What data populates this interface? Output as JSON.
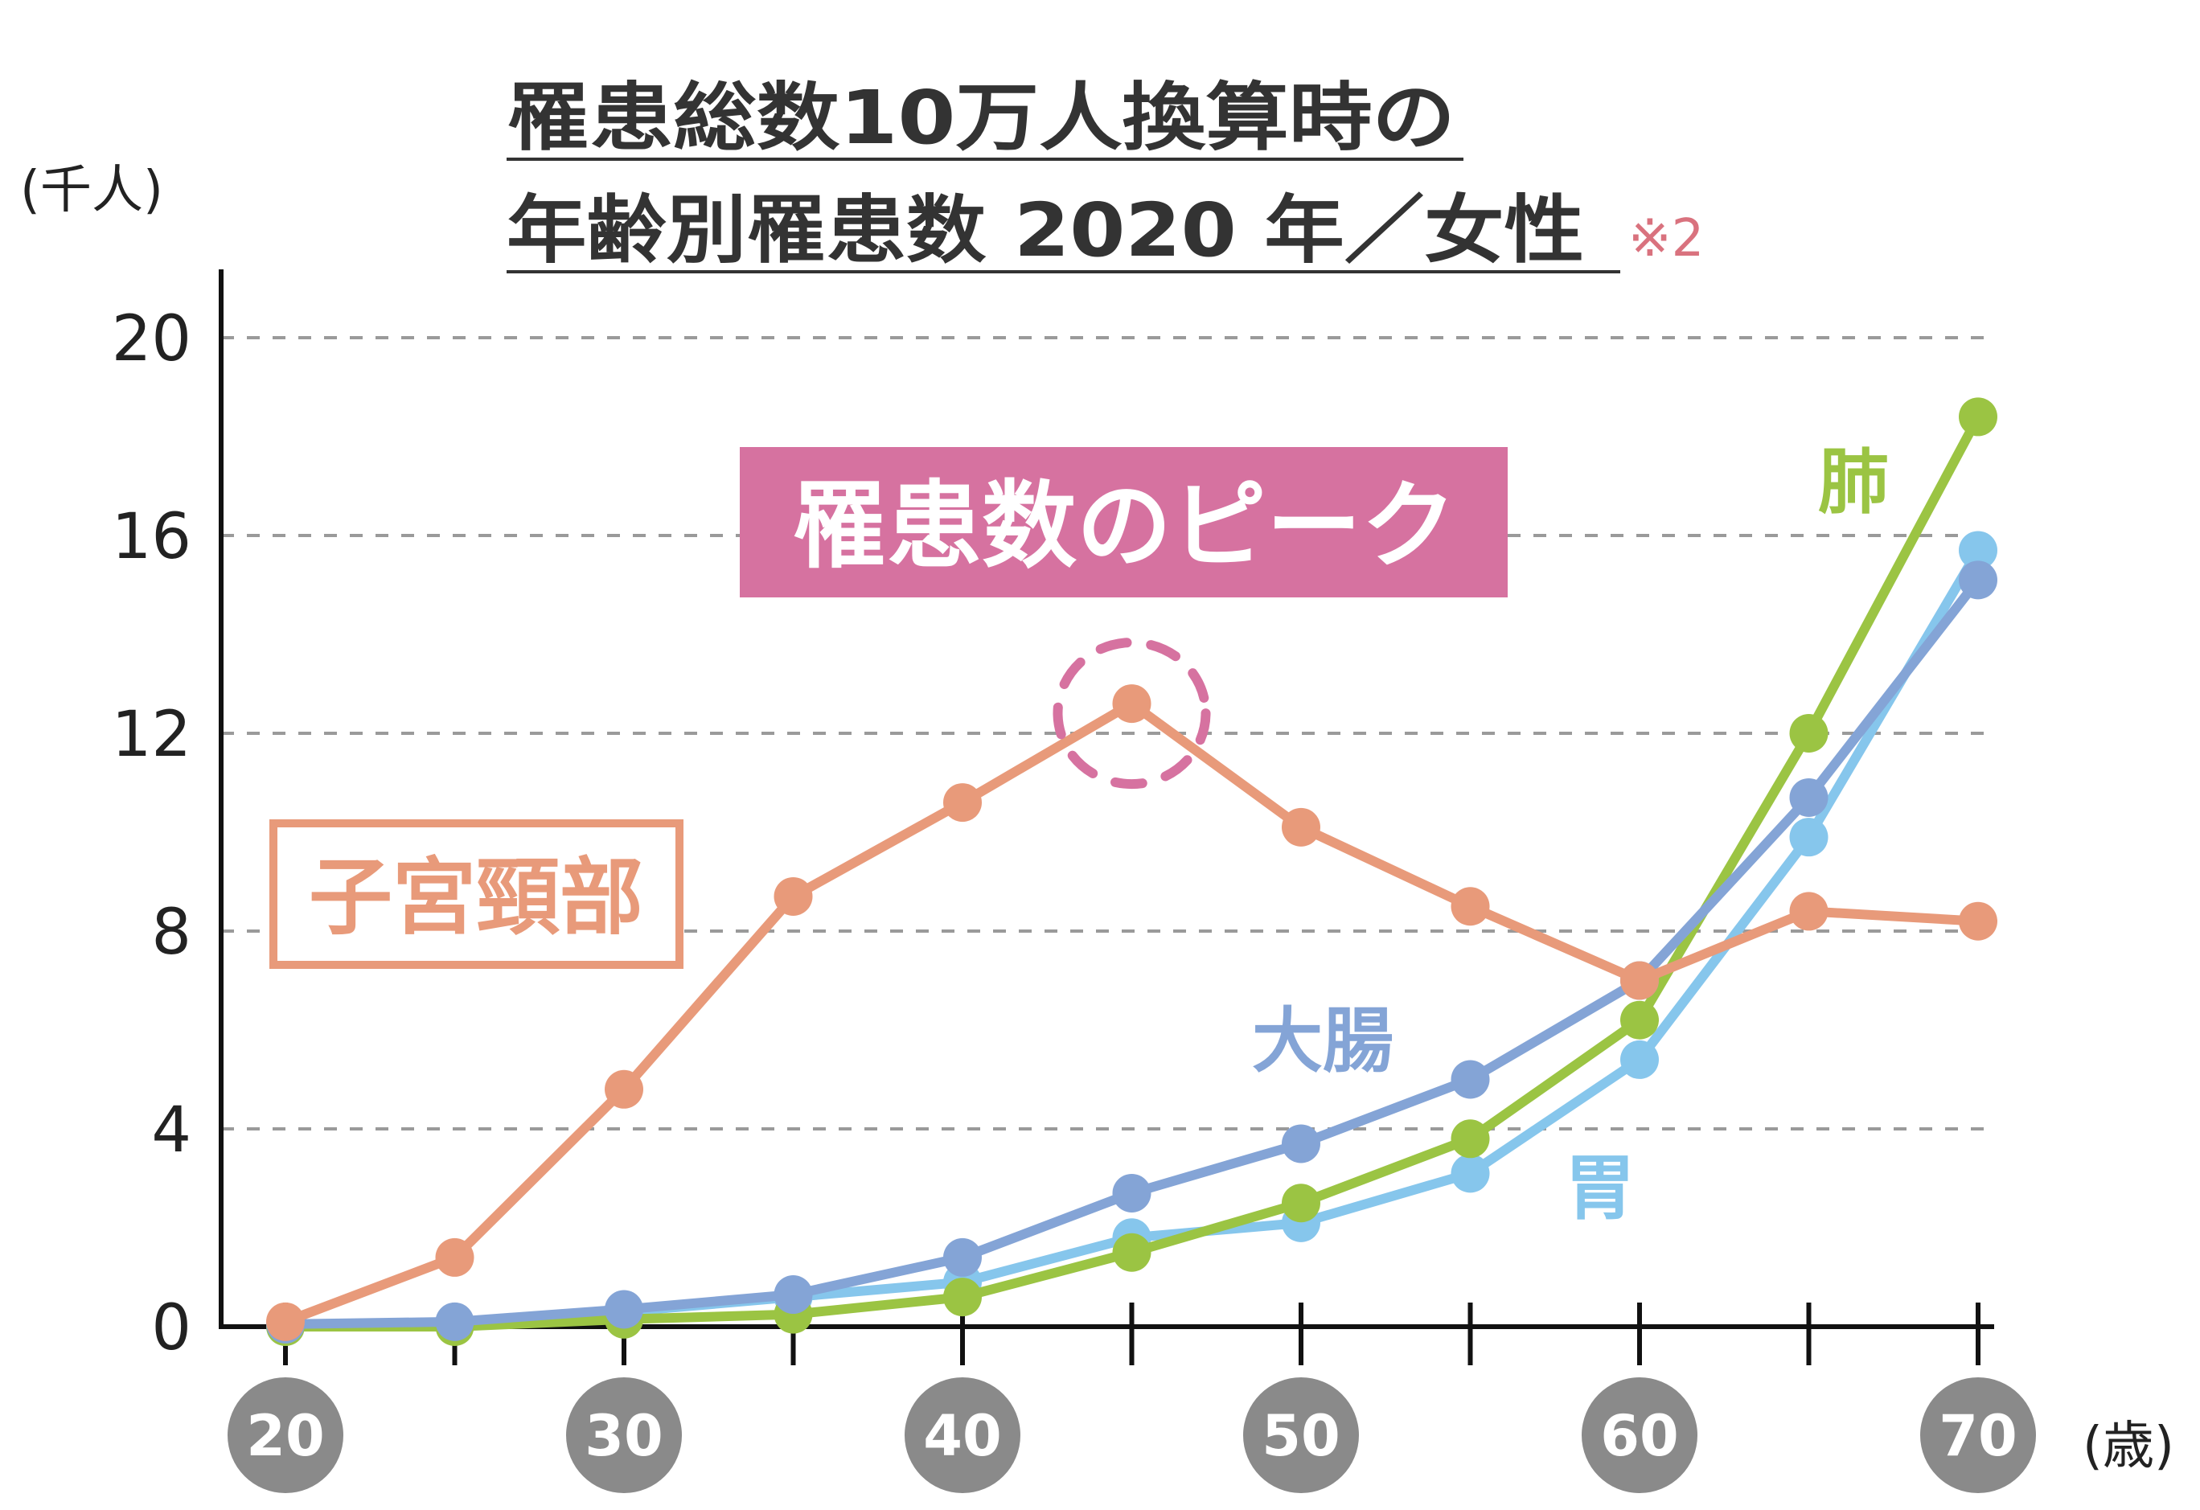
{
  "chart_data": {
    "type": "line",
    "title_line1": "罹患総数10万人換算時の",
    "title_line2": "年齢別罹患数 2020 年／女性",
    "title_note": "※2",
    "ylabel": "(千人)",
    "xlabel": "(歳)",
    "ylim": [
      0,
      20
    ],
    "yticks": [
      "0",
      "4",
      "8",
      "12",
      "16",
      "20"
    ],
    "yticks_values": [
      0,
      4,
      8,
      12,
      16,
      20
    ],
    "grid": true,
    "xlim": [
      20,
      70
    ],
    "xticks": [
      20,
      25,
      30,
      35,
      40,
      45,
      50,
      55,
      60,
      65,
      70
    ],
    "xtick_labels": [
      {
        "value": 20,
        "label": "20"
      },
      {
        "value": 30,
        "label": "30"
      },
      {
        "value": 40,
        "label": "40"
      },
      {
        "value": 50,
        "label": "50"
      },
      {
        "value": 60,
        "label": "60"
      },
      {
        "value": 70,
        "label": "70"
      }
    ],
    "x": [
      20,
      25,
      30,
      35,
      40,
      45,
      50,
      55,
      60,
      65,
      70
    ],
    "series": [
      {
        "name": "胃",
        "color": "#86c6ec",
        "values": [
          0.0,
          0.05,
          0.3,
          0.6,
          0.9,
          1.8,
          2.1,
          3.1,
          5.4,
          9.9,
          15.7
        ]
      },
      {
        "name": "肺",
        "color": "#9bc443",
        "values": [
          0.0,
          0.0,
          0.15,
          0.25,
          0.6,
          1.5,
          2.5,
          3.8,
          6.2,
          12.0,
          18.4
        ]
      },
      {
        "name": "大腸",
        "color": "#84a4d6",
        "values": [
          0.05,
          0.1,
          0.35,
          0.65,
          1.4,
          2.7,
          3.7,
          5.0,
          7.0,
          10.7,
          15.1
        ]
      },
      {
        "name": "子宮頸部",
        "color": "#e89a7a",
        "values": [
          0.1,
          1.4,
          4.8,
          8.7,
          10.6,
          12.6,
          10.1,
          8.5,
          7.0,
          8.4,
          8.2
        ]
      }
    ],
    "annotations": {
      "peak_label": "罹患数のピーク",
      "peak_label_bg": "#d672a0",
      "peak_circle_color": "#d672a0",
      "peak_point": {
        "series": "子宮頸部",
        "x": 45,
        "y": 12.6
      },
      "cervical_label": "子宮頸部",
      "cervical_color": "#e89a7a",
      "lung_label": "肺",
      "colon_label": "大腸",
      "stomach_label": "胃"
    }
  }
}
